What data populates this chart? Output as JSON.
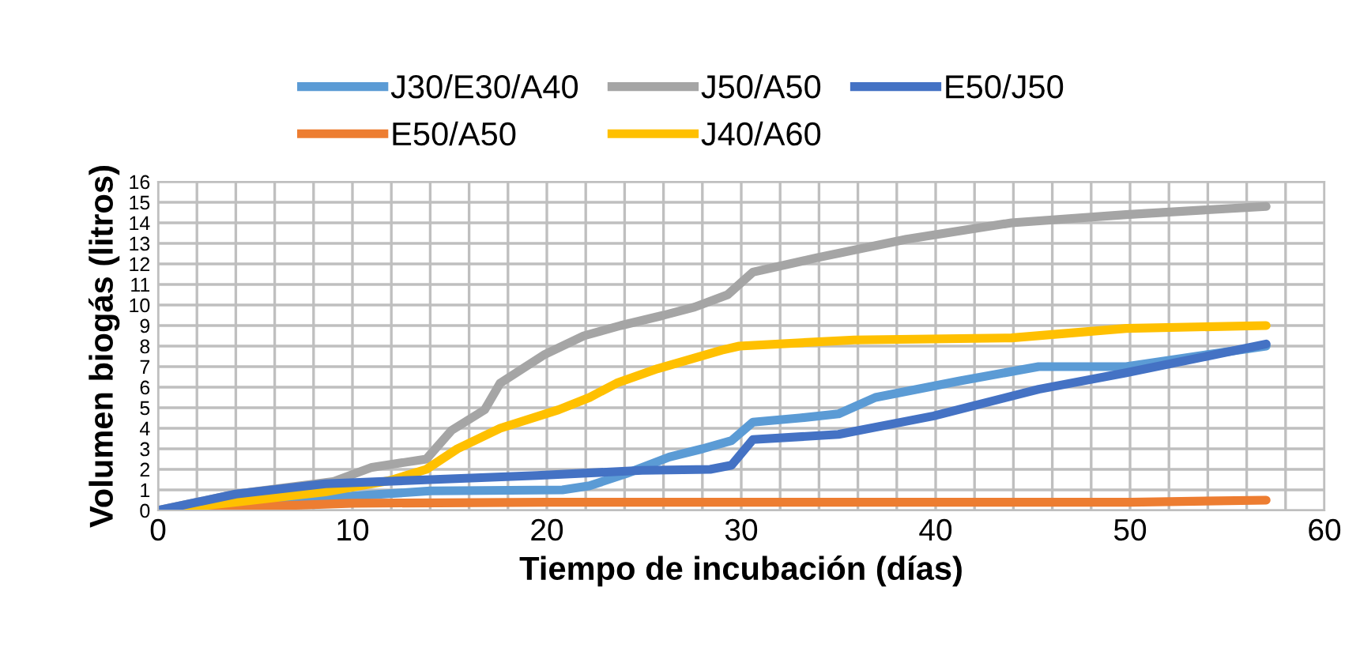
{
  "chart_data": {
    "type": "line",
    "xlabel": "Tiempo de incubación (días)",
    "ylabel": "Volumen biogás (litros)",
    "xlim": [
      0,
      60
    ],
    "ylim": [
      0,
      16
    ],
    "xticks": [
      0,
      {
        "value": 2,
        "label": null
      },
      {
        "value": 4,
        "label": null
      },
      {
        "value": 6,
        "label": null
      },
      {
        "value": 8,
        "label": null
      },
      10,
      {
        "value": 12,
        "label": null
      },
      {
        "value": 14,
        "label": null
      },
      {
        "value": 16,
        "label": null
      },
      {
        "value": 18,
        "label": null
      },
      20,
      {
        "value": 22,
        "label": null
      },
      {
        "value": 24,
        "label": null
      },
      {
        "value": 26,
        "label": null
      },
      {
        "value": 28,
        "label": null
      },
      30,
      {
        "value": 32,
        "label": null
      },
      {
        "value": 34,
        "label": null
      },
      {
        "value": 36,
        "label": null
      },
      {
        "value": 38,
        "label": null
      },
      40,
      {
        "value": 42,
        "label": null
      },
      {
        "value": 44,
        "label": null
      },
      {
        "value": 46,
        "label": null
      },
      {
        "value": 48,
        "label": null
      },
      50,
      {
        "value": 52,
        "label": null
      },
      {
        "value": 54,
        "label": null
      },
      {
        "value": 56,
        "label": null
      },
      {
        "value": 58,
        "label": null
      },
      60
    ],
    "yticks": [
      0,
      1,
      2,
      3,
      4,
      5,
      6,
      7,
      8,
      9,
      10,
      11,
      12,
      13,
      14,
      15,
      16
    ],
    "grid": true,
    "legend": "top",
    "marker": "none",
    "line_style": "solid",
    "series": [
      {
        "name": "J30/E30/A40",
        "color": "#5b9bd5",
        "x": [
          0,
          4,
          10,
          14,
          20.8,
          22.2,
          24.1,
          26.3,
          28,
          29.5,
          30.6,
          33,
          35,
          36.9,
          41.2,
          45.3,
          49.8,
          57
        ],
        "values": [
          0,
          0.3,
          0.7,
          0.95,
          1.0,
          1.2,
          1.8,
          2.6,
          3.0,
          3.4,
          4.3,
          4.5,
          4.7,
          5.5,
          6.3,
          7.0,
          7.0,
          8.0
        ]
      },
      {
        "name": "E50/A50",
        "color": "#ed7d31",
        "x": [
          0,
          4,
          10,
          20,
          30,
          40,
          50,
          57
        ],
        "values": [
          0,
          0.15,
          0.35,
          0.4,
          0.4,
          0.4,
          0.4,
          0.5
        ]
      },
      {
        "name": "J50/A50",
        "color": "#a5a5a5",
        "x": [
          0,
          4,
          9,
          11,
          13.8,
          15.1,
          16.8,
          17.6,
          19.9,
          21.9,
          23.8,
          26,
          27.6,
          29.3,
          30.6,
          33.9,
          38.5,
          43.9,
          49.8,
          57
        ],
        "values": [
          0,
          0.8,
          1.4,
          2.1,
          2.5,
          3.9,
          4.9,
          6.2,
          7.6,
          8.5,
          9.0,
          9.5,
          9.9,
          10.5,
          11.6,
          12.3,
          13.2,
          14.0,
          14.4,
          14.8
        ]
      },
      {
        "name": "J40/A60",
        "color": "#ffc000",
        "x": [
          0,
          4,
          8.6,
          11.9,
          13.8,
          15.4,
          17.6,
          20.6,
          22.2,
          23.6,
          25.7,
          29,
          29.9,
          35.8,
          43.9,
          49.8,
          57
        ],
        "values": [
          0,
          0.4,
          0.9,
          1.45,
          2.0,
          3.0,
          4.0,
          4.9,
          5.5,
          6.2,
          6.9,
          7.8,
          8.0,
          8.3,
          8.4,
          8.86,
          9.0
        ]
      },
      {
        "name": "E50/J50",
        "color": "#4472c4",
        "x": [
          0,
          4,
          8.6,
          14,
          19.5,
          24.9,
          28.4,
          29.5,
          30.6,
          35,
          39.9,
          45.3,
          49.8,
          57
        ],
        "values": [
          0,
          0.8,
          1.3,
          1.5,
          1.7,
          1.95,
          2.0,
          2.2,
          3.45,
          3.7,
          4.6,
          5.9,
          6.7,
          8.1
        ]
      }
    ]
  }
}
